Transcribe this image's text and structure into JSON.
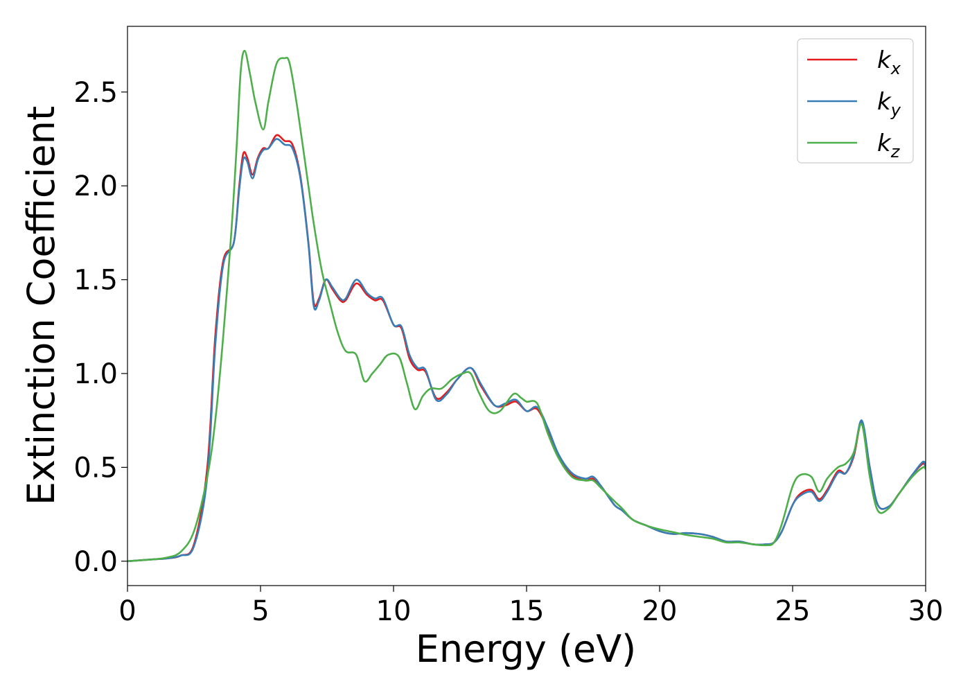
{
  "chart_data": {
    "type": "line",
    "xlabel": "Energy (eV)",
    "ylabel": "Extinction Coefficient",
    "xlim": [
      0,
      30
    ],
    "ylim": [
      -0.13,
      2.85
    ],
    "xticks": [
      0,
      5,
      10,
      15,
      20,
      25,
      30
    ],
    "yticks": [
      0.0,
      0.5,
      1.0,
      1.5,
      2.0,
      2.5
    ],
    "xtick_labels": [
      "0",
      "5",
      "10",
      "15",
      "20",
      "25",
      "30"
    ],
    "ytick_labels": [
      "0.0",
      "0.5",
      "1.0",
      "1.5",
      "2.0",
      "2.5"
    ],
    "grid": false,
    "legend_position": "top-right",
    "series": [
      {
        "name": "k_x",
        "label_main": "k",
        "label_sub": "x",
        "color": "#e41a1c",
        "points": [
          [
            0,
            0.0
          ],
          [
            1,
            0.01
          ],
          [
            1.5,
            0.015
          ],
          [
            2,
            0.03
          ],
          [
            2.5,
            0.09
          ],
          [
            3,
            0.5
          ],
          [
            3.3,
            1.2
          ],
          [
            3.6,
            1.6
          ],
          [
            4.0,
            1.7
          ],
          [
            4.2,
            2.0
          ],
          [
            4.35,
            2.17
          ],
          [
            4.5,
            2.15
          ],
          [
            4.7,
            2.06
          ],
          [
            4.9,
            2.15
          ],
          [
            5.1,
            2.2
          ],
          [
            5.3,
            2.2
          ],
          [
            5.6,
            2.27
          ],
          [
            5.9,
            2.24
          ],
          [
            6.2,
            2.22
          ],
          [
            6.5,
            2.05
          ],
          [
            6.8,
            1.7
          ],
          [
            7.0,
            1.38
          ],
          [
            7.2,
            1.4
          ],
          [
            7.45,
            1.5
          ],
          [
            7.7,
            1.45
          ],
          [
            8.0,
            1.39
          ],
          [
            8.2,
            1.39
          ],
          [
            8.6,
            1.48
          ],
          [
            9.0,
            1.42
          ],
          [
            9.3,
            1.39
          ],
          [
            9.6,
            1.39
          ],
          [
            10.0,
            1.26
          ],
          [
            10.3,
            1.24
          ],
          [
            10.6,
            1.08
          ],
          [
            10.9,
            1.02
          ],
          [
            11.2,
            1.01
          ],
          [
            11.6,
            0.87
          ],
          [
            12.0,
            0.9
          ],
          [
            12.4,
            0.97
          ],
          [
            12.9,
            1.03
          ],
          [
            13.3,
            0.93
          ],
          [
            13.8,
            0.83
          ],
          [
            14.2,
            0.83
          ],
          [
            14.6,
            0.85
          ],
          [
            15.0,
            0.8
          ],
          [
            15.4,
            0.81
          ],
          [
            15.8,
            0.7
          ],
          [
            16.2,
            0.56
          ],
          [
            16.7,
            0.46
          ],
          [
            17.2,
            0.43
          ],
          [
            17.5,
            0.44
          ],
          [
            17.8,
            0.4
          ],
          [
            18.3,
            0.3
          ],
          [
            18.6,
            0.27
          ],
          [
            19.0,
            0.22
          ],
          [
            19.5,
            0.19
          ],
          [
            20.0,
            0.16
          ],
          [
            20.5,
            0.145
          ],
          [
            21.0,
            0.15
          ],
          [
            21.5,
            0.145
          ],
          [
            22.0,
            0.13
          ],
          [
            22.5,
            0.105
          ],
          [
            23.0,
            0.105
          ],
          [
            23.5,
            0.09
          ],
          [
            24.0,
            0.09
          ],
          [
            24.3,
            0.1
          ],
          [
            24.6,
            0.16
          ],
          [
            25.0,
            0.3
          ],
          [
            25.3,
            0.36
          ],
          [
            25.7,
            0.38
          ],
          [
            26.0,
            0.33
          ],
          [
            26.3,
            0.38
          ],
          [
            26.7,
            0.48
          ],
          [
            27.0,
            0.47
          ],
          [
            27.3,
            0.56
          ],
          [
            27.6,
            0.74
          ],
          [
            27.9,
            0.5
          ],
          [
            28.2,
            0.3
          ],
          [
            28.6,
            0.29
          ],
          [
            29.0,
            0.36
          ],
          [
            29.5,
            0.46
          ],
          [
            29.9,
            0.52
          ],
          [
            30,
            0.49
          ]
        ]
      },
      {
        "name": "k_y",
        "label_main": "k",
        "label_sub": "y",
        "color": "#377eb8",
        "points": [
          [
            0,
            0.0
          ],
          [
            1,
            0.01
          ],
          [
            1.5,
            0.015
          ],
          [
            2,
            0.03
          ],
          [
            2.5,
            0.08
          ],
          [
            3,
            0.45
          ],
          [
            3.3,
            1.15
          ],
          [
            3.6,
            1.58
          ],
          [
            4.0,
            1.7
          ],
          [
            4.2,
            1.98
          ],
          [
            4.35,
            2.14
          ],
          [
            4.5,
            2.13
          ],
          [
            4.7,
            2.04
          ],
          [
            4.9,
            2.14
          ],
          [
            5.1,
            2.19
          ],
          [
            5.3,
            2.2
          ],
          [
            5.6,
            2.25
          ],
          [
            5.9,
            2.22
          ],
          [
            6.2,
            2.2
          ],
          [
            6.5,
            2.04
          ],
          [
            6.8,
            1.69
          ],
          [
            7.0,
            1.36
          ],
          [
            7.2,
            1.39
          ],
          [
            7.45,
            1.5
          ],
          [
            7.7,
            1.46
          ],
          [
            8.0,
            1.4
          ],
          [
            8.2,
            1.4
          ],
          [
            8.6,
            1.5
          ],
          [
            9.0,
            1.43
          ],
          [
            9.3,
            1.4
          ],
          [
            9.6,
            1.4
          ],
          [
            10.0,
            1.26
          ],
          [
            10.3,
            1.25
          ],
          [
            10.6,
            1.1
          ],
          [
            10.9,
            1.03
          ],
          [
            11.2,
            1.02
          ],
          [
            11.6,
            0.86
          ],
          [
            12.0,
            0.89
          ],
          [
            12.4,
            0.97
          ],
          [
            12.9,
            1.03
          ],
          [
            13.3,
            0.94
          ],
          [
            13.8,
            0.83
          ],
          [
            14.2,
            0.84
          ],
          [
            14.6,
            0.86
          ],
          [
            15.0,
            0.8
          ],
          [
            15.4,
            0.82
          ],
          [
            15.8,
            0.71
          ],
          [
            16.2,
            0.57
          ],
          [
            16.7,
            0.47
          ],
          [
            17.2,
            0.44
          ],
          [
            17.5,
            0.45
          ],
          [
            17.8,
            0.4
          ],
          [
            18.3,
            0.3
          ],
          [
            18.6,
            0.27
          ],
          [
            19.0,
            0.22
          ],
          [
            19.5,
            0.19
          ],
          [
            20.0,
            0.16
          ],
          [
            20.5,
            0.145
          ],
          [
            21.0,
            0.15
          ],
          [
            21.5,
            0.145
          ],
          [
            22.0,
            0.13
          ],
          [
            22.5,
            0.105
          ],
          [
            23.0,
            0.105
          ],
          [
            23.5,
            0.09
          ],
          [
            24.0,
            0.09
          ],
          [
            24.3,
            0.1
          ],
          [
            24.6,
            0.16
          ],
          [
            25.0,
            0.3
          ],
          [
            25.3,
            0.35
          ],
          [
            25.7,
            0.37
          ],
          [
            26.0,
            0.32
          ],
          [
            26.3,
            0.37
          ],
          [
            26.7,
            0.47
          ],
          [
            27.0,
            0.47
          ],
          [
            27.3,
            0.57
          ],
          [
            27.6,
            0.75
          ],
          [
            27.9,
            0.5
          ],
          [
            28.2,
            0.3
          ],
          [
            28.6,
            0.29
          ],
          [
            29.0,
            0.36
          ],
          [
            29.5,
            0.46
          ],
          [
            29.9,
            0.53
          ],
          [
            30,
            0.5
          ]
        ]
      },
      {
        "name": "k_z",
        "label_main": "k",
        "label_sub": "z",
        "color": "#4daf4a",
        "points": [
          [
            0,
            0.0
          ],
          [
            1,
            0.01
          ],
          [
            1.5,
            0.02
          ],
          [
            2,
            0.05
          ],
          [
            2.5,
            0.16
          ],
          [
            3,
            0.45
          ],
          [
            3.3,
            0.75
          ],
          [
            3.6,
            1.2
          ],
          [
            3.9,
            1.75
          ],
          [
            4.1,
            2.2
          ],
          [
            4.25,
            2.6
          ],
          [
            4.4,
            2.72
          ],
          [
            4.6,
            2.6
          ],
          [
            4.8,
            2.45
          ],
          [
            5.1,
            2.3
          ],
          [
            5.3,
            2.45
          ],
          [
            5.6,
            2.65
          ],
          [
            5.9,
            2.68
          ],
          [
            6.1,
            2.65
          ],
          [
            6.4,
            2.4
          ],
          [
            6.8,
            2.0
          ],
          [
            7.0,
            1.8
          ],
          [
            7.3,
            1.55
          ],
          [
            7.6,
            1.38
          ],
          [
            7.9,
            1.22
          ],
          [
            8.2,
            1.12
          ],
          [
            8.6,
            1.1
          ],
          [
            8.9,
            0.96
          ],
          [
            9.2,
            1.0
          ],
          [
            9.5,
            1.05
          ],
          [
            9.8,
            1.1
          ],
          [
            10.2,
            1.09
          ],
          [
            10.5,
            0.95
          ],
          [
            10.8,
            0.81
          ],
          [
            11.1,
            0.88
          ],
          [
            11.4,
            0.92
          ],
          [
            11.8,
            0.92
          ],
          [
            12.2,
            0.97
          ],
          [
            12.6,
            1.0
          ],
          [
            12.9,
            1.0
          ],
          [
            13.2,
            0.9
          ],
          [
            13.6,
            0.8
          ],
          [
            14.0,
            0.8
          ],
          [
            14.5,
            0.89
          ],
          [
            14.8,
            0.87
          ],
          [
            15.0,
            0.85
          ],
          [
            15.4,
            0.84
          ],
          [
            15.8,
            0.68
          ],
          [
            16.2,
            0.55
          ],
          [
            16.7,
            0.45
          ],
          [
            17.2,
            0.43
          ],
          [
            17.5,
            0.43
          ],
          [
            17.8,
            0.39
          ],
          [
            18.3,
            0.32
          ],
          [
            18.6,
            0.28
          ],
          [
            19.0,
            0.22
          ],
          [
            19.5,
            0.19
          ],
          [
            20.0,
            0.17
          ],
          [
            20.5,
            0.155
          ],
          [
            21.0,
            0.14
          ],
          [
            21.5,
            0.13
          ],
          [
            22.0,
            0.12
          ],
          [
            22.5,
            0.1
          ],
          [
            23.0,
            0.1
          ],
          [
            23.5,
            0.09
          ],
          [
            24.0,
            0.085
          ],
          [
            24.3,
            0.1
          ],
          [
            24.6,
            0.2
          ],
          [
            25.0,
            0.4
          ],
          [
            25.3,
            0.46
          ],
          [
            25.7,
            0.45
          ],
          [
            26.0,
            0.37
          ],
          [
            26.3,
            0.44
          ],
          [
            26.7,
            0.5
          ],
          [
            27.0,
            0.52
          ],
          [
            27.3,
            0.58
          ],
          [
            27.6,
            0.73
          ],
          [
            27.9,
            0.45
          ],
          [
            28.2,
            0.27
          ],
          [
            28.6,
            0.28
          ],
          [
            29.0,
            0.36
          ],
          [
            29.5,
            0.45
          ],
          [
            29.9,
            0.5
          ],
          [
            30,
            0.49
          ]
        ]
      }
    ]
  }
}
